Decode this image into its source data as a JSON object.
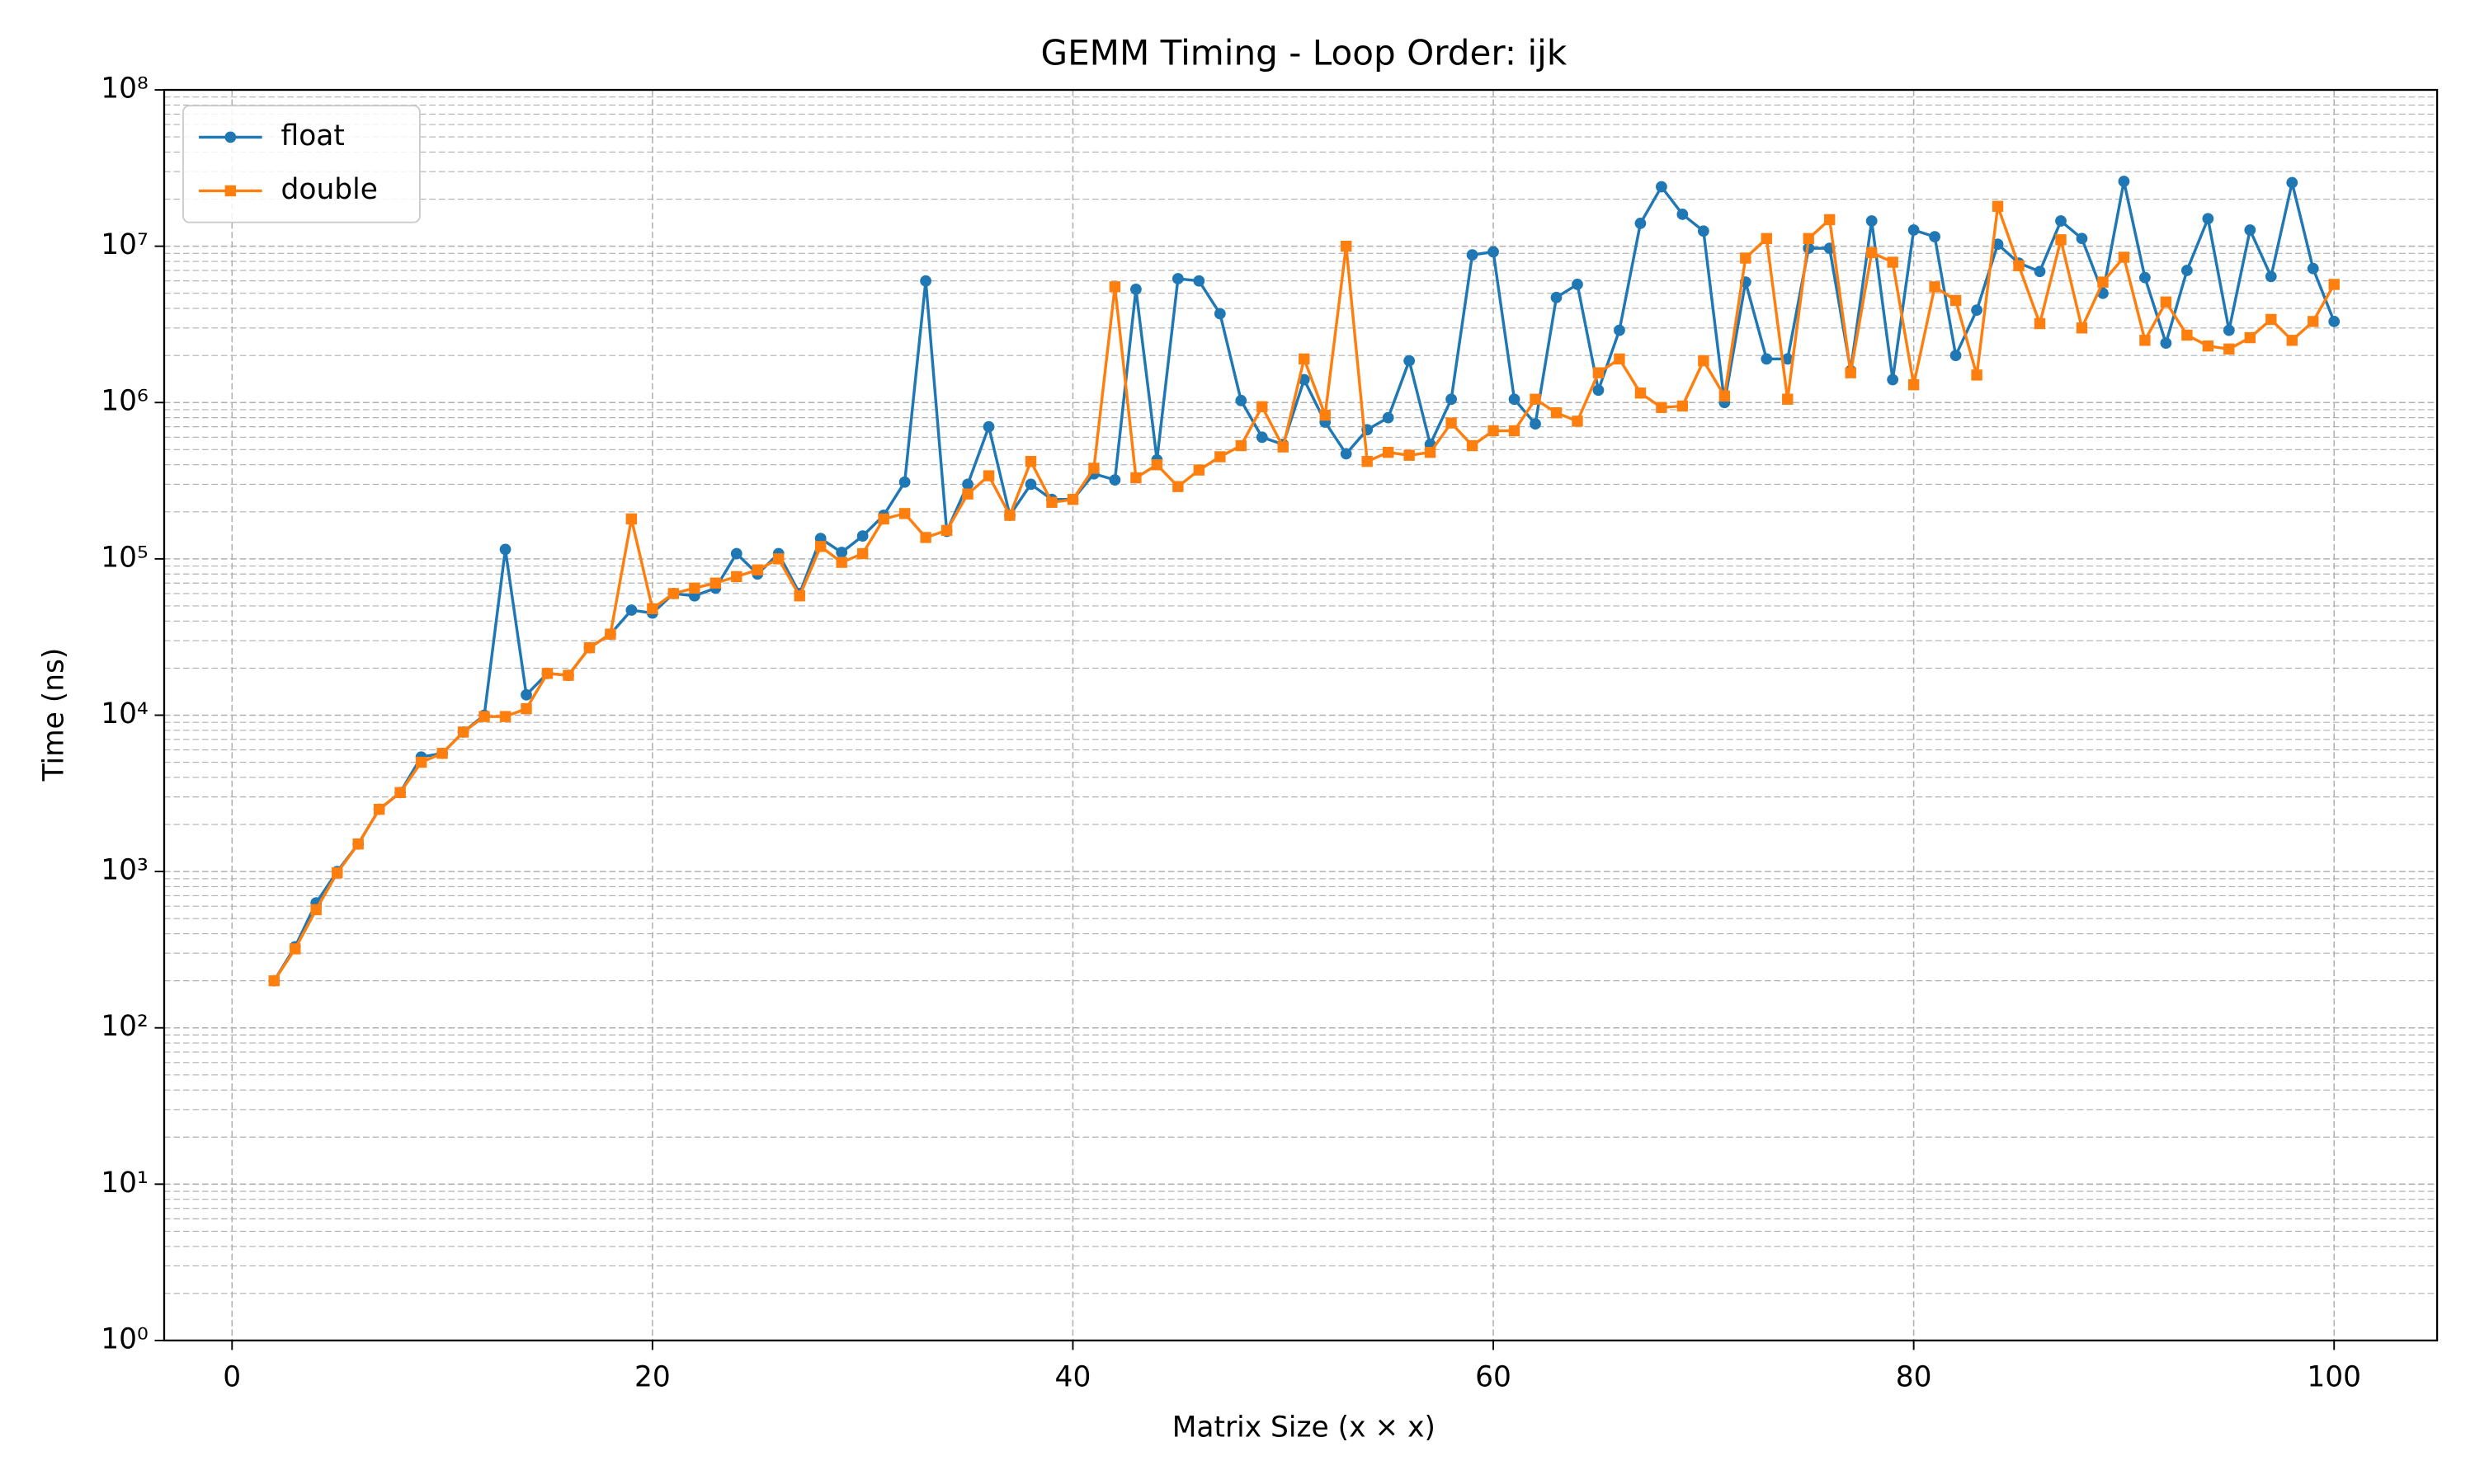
{
  "chart_data": {
    "type": "line",
    "title": "GEMM Timing - Loop Order: ijk",
    "x_label": "Matrix Size (x × x)",
    "y_label": "Time (ns)",
    "x": [
      2,
      3,
      4,
      5,
      6,
      7,
      8,
      9,
      10,
      11,
      12,
      13,
      14,
      15,
      16,
      17,
      18,
      19,
      20,
      21,
      22,
      23,
      24,
      25,
      26,
      27,
      28,
      29,
      30,
      31,
      32,
      33,
      34,
      35,
      36,
      37,
      38,
      39,
      40,
      41,
      42,
      43,
      44,
      45,
      46,
      47,
      48,
      49,
      50,
      51,
      52,
      53,
      54,
      55,
      56,
      57,
      58,
      59,
      60,
      61,
      62,
      63,
      64,
      65,
      66,
      67,
      68,
      69,
      70,
      71,
      72,
      73,
      74,
      75,
      76,
      77,
      78,
      79,
      80,
      81,
      82,
      83,
      84,
      85,
      86,
      87,
      88,
      89,
      90,
      91,
      92,
      93,
      94,
      95,
      96,
      97,
      98,
      99,
      100
    ],
    "series": [
      {
        "name": "float",
        "color": "#1f77b4",
        "marker": "circle",
        "values": [
          200,
          330,
          630,
          1000,
          1500,
          2500,
          3200,
          5400,
          5700,
          7800,
          10000,
          115000,
          13500,
          18500,
          18000,
          27000,
          33000,
          47000,
          45000,
          60000,
          58000,
          65000,
          108000,
          80000,
          108000,
          60000,
          135000,
          110000,
          140000,
          190000,
          310000,
          6000000,
          150000,
          300000,
          700000,
          190000,
          300000,
          240000,
          240000,
          350000,
          320000,
          5300000,
          430000,
          6200000,
          6000000,
          3700000,
          1030000,
          600000,
          540000,
          1400000,
          750000,
          470000,
          670000,
          800000,
          1850000,
          540000,
          1050000,
          8800000,
          9200000,
          1050000,
          730000,
          4700000,
          5700000,
          1200000,
          2900000,
          14000000,
          24000000,
          16000000,
          12500000,
          1000000,
          5900000,
          1900000,
          1900000,
          9700000,
          9700000,
          1600000,
          14500000,
          1400000,
          12700000,
          11500000,
          2000000,
          3900000,
          10300000,
          7800000,
          6900000,
          14500000,
          11200000,
          5000000,
          26000000,
          6300000,
          2400000,
          7000000,
          15000000,
          2900000,
          12700000,
          6400000,
          25500000,
          7200000,
          3300000
        ]
      },
      {
        "name": "double",
        "color": "#ff7f0e",
        "marker": "square",
        "values": [
          200,
          320,
          570,
          980,
          1500,
          2500,
          3200,
          5000,
          5700,
          7800,
          9800,
          9800,
          11000,
          18500,
          18000,
          27000,
          33000,
          180000,
          48000,
          60000,
          65000,
          70000,
          77000,
          85000,
          100000,
          58000,
          120000,
          95000,
          108000,
          180000,
          195000,
          137000,
          152000,
          260000,
          340000,
          190000,
          420000,
          230000,
          240000,
          380000,
          5500000,
          330000,
          400000,
          290000,
          370000,
          450000,
          530000,
          940000,
          520000,
          1900000,
          830000,
          10000000,
          420000,
          480000,
          460000,
          480000,
          740000,
          530000,
          660000,
          660000,
          1050000,
          860000,
          760000,
          1550000,
          1900000,
          1150000,
          930000,
          950000,
          1850000,
          1100000,
          8400000,
          11200000,
          1050000,
          11200000,
          14800000,
          1550000,
          9100000,
          7900000,
          1300000,
          5500000,
          4500000,
          1500000,
          18000000,
          7500000,
          3200000,
          11000000,
          3000000,
          5900000,
          8500000,
          2500000,
          4400000,
          2700000,
          2300000,
          2200000,
          2600000,
          3400000,
          2500000,
          3300000,
          5700000
        ]
      }
    ],
    "xlim": [
      -3.23,
      104.9
    ],
    "xticks": [
      0,
      20,
      40,
      60,
      80,
      100
    ],
    "ylim": [
      1,
      100000000
    ],
    "log_y": true,
    "yticks": [
      {
        "value": 1,
        "label": "10⁰"
      },
      {
        "value": 10,
        "label": "10¹"
      },
      {
        "value": 100,
        "label": "10²"
      },
      {
        "value": 1000,
        "label": "10³"
      },
      {
        "value": 10000,
        "label": "10⁴"
      },
      {
        "value": 100000,
        "label": "10⁵"
      },
      {
        "value": 1000000,
        "label": "10⁶"
      },
      {
        "value": 10000000,
        "label": "10⁷"
      },
      {
        "value": 100000000,
        "label": "10⁸"
      }
    ],
    "grid": true,
    "legend": "upper left"
  }
}
